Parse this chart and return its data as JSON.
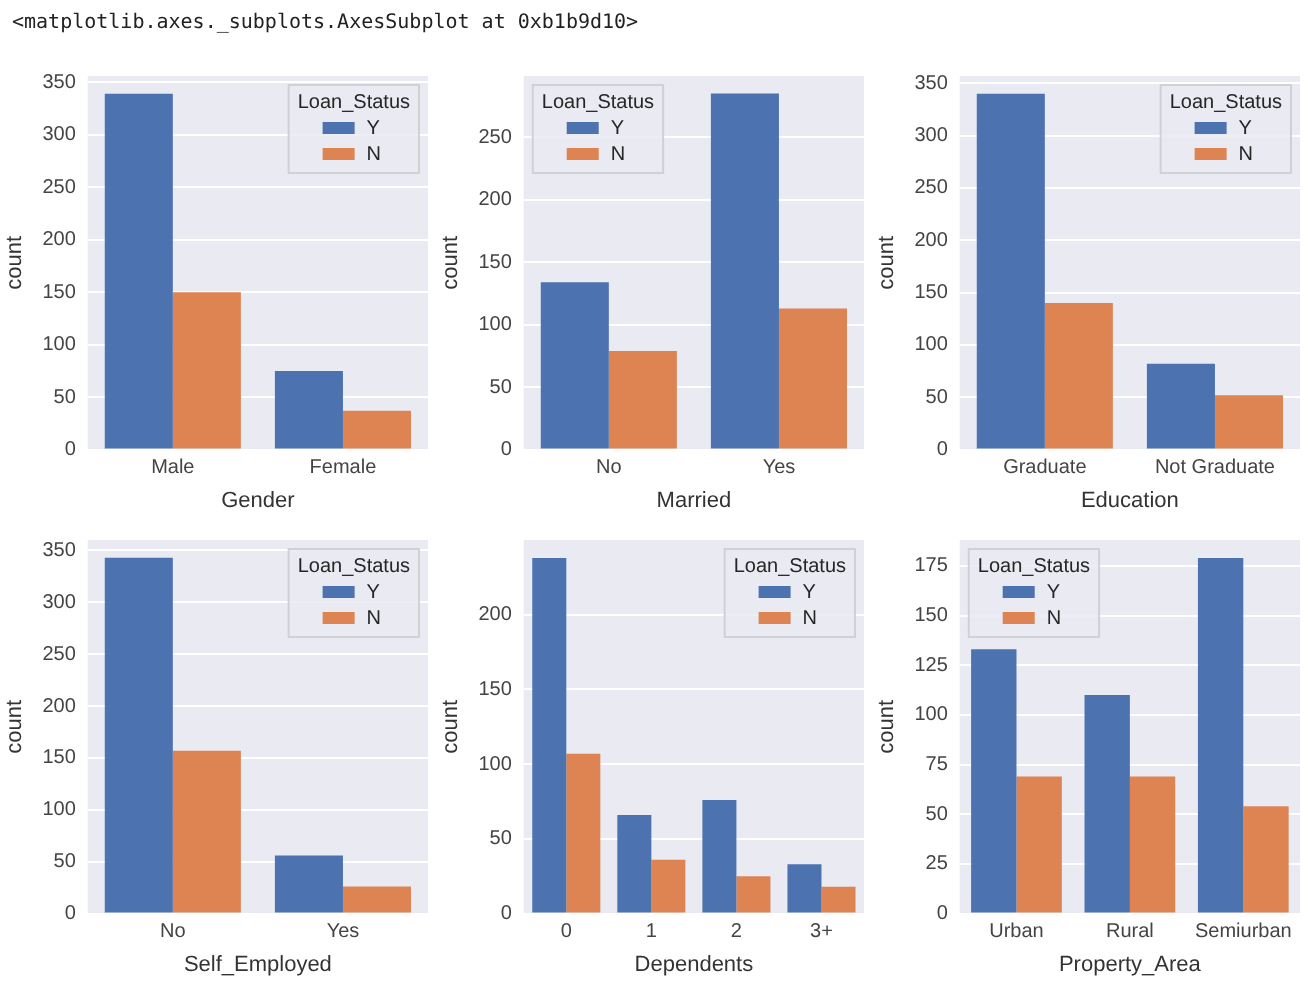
{
  "chart_data": [
    {
      "type": "bar",
      "annotations": [
        "<matplotlib.axes._subplots.AxesSubplot at 0xb1b9d10>"
      ],
      "xlabel": "Gender",
      "ylabel": "count",
      "categories": [
        "Male",
        "Female"
      ],
      "legend_title": "Loan_Status",
      "legend": "top right",
      "grid": "y",
      "ylim": [
        0,
        356
      ],
      "yticks": [
        0,
        50,
        100,
        150,
        200,
        250,
        300,
        350
      ],
      "series": [
        {
          "name": "Y",
          "color": "#4c72b0",
          "values": [
            339,
            75
          ]
        },
        {
          "name": "N",
          "color": "#dd8452",
          "values": [
            150,
            37
          ]
        }
      ]
    },
    {
      "type": "bar",
      "xlabel": "Married",
      "ylabel": "count",
      "categories": [
        "No",
        "Yes"
      ],
      "legend_title": "Loan_Status",
      "legend": "top left",
      "grid": "y",
      "ylim": [
        0,
        299
      ],
      "yticks": [
        0,
        50,
        100,
        150,
        200,
        250
      ],
      "series": [
        {
          "name": "Y",
          "color": "#4c72b0",
          "values": [
            134,
            285
          ]
        },
        {
          "name": "N",
          "color": "#dd8452",
          "values": [
            79,
            113
          ]
        }
      ]
    },
    {
      "type": "bar",
      "xlabel": "Education",
      "ylabel": "count",
      "categories": [
        "Graduate",
        "Not Graduate"
      ],
      "legend_title": "Loan_Status",
      "legend": "top right",
      "grid": "y",
      "ylim": [
        0,
        357
      ],
      "yticks": [
        0,
        50,
        100,
        150,
        200,
        250,
        300,
        350
      ],
      "series": [
        {
          "name": "Y",
          "color": "#4c72b0",
          "values": [
            340,
            82
          ]
        },
        {
          "name": "N",
          "color": "#dd8452",
          "values": [
            140,
            52
          ]
        }
      ]
    },
    {
      "type": "bar",
      "xlabel": "Self_Employed",
      "ylabel": "count",
      "categories": [
        "No",
        "Yes"
      ],
      "legend_title": "Loan_Status",
      "legend": "top right",
      "grid": "y",
      "ylim": [
        0,
        360
      ],
      "yticks": [
        0,
        50,
        100,
        150,
        200,
        250,
        300,
        350
      ],
      "series": [
        {
          "name": "Y",
          "color": "#4c72b0",
          "values": [
            343,
            56
          ]
        },
        {
          "name": "N",
          "color": "#dd8452",
          "values": [
            157,
            26
          ]
        }
      ]
    },
    {
      "type": "bar",
      "xlabel": "Dependents",
      "ylabel": "count",
      "categories": [
        "0",
        "1",
        "2",
        "3+"
      ],
      "legend_title": "Loan_Status",
      "legend": "top right",
      "grid": "y",
      "ylim": [
        0,
        250
      ],
      "yticks": [
        0,
        50,
        100,
        150,
        200
      ],
      "series": [
        {
          "name": "Y",
          "color": "#4c72b0",
          "values": [
            238,
            66,
            76,
            33
          ]
        },
        {
          "name": "N",
          "color": "#dd8452",
          "values": [
            107,
            36,
            25,
            18
          ]
        }
      ]
    },
    {
      "type": "bar",
      "xlabel": "Property_Area",
      "ylabel": "count",
      "categories": [
        "Urban",
        "Rural",
        "Semiurban"
      ],
      "legend_title": "Loan_Status",
      "legend": "top left",
      "grid": "y",
      "ylim": [
        0,
        188
      ],
      "yticks": [
        0,
        25,
        50,
        75,
        100,
        125,
        150,
        175
      ],
      "series": [
        {
          "name": "Y",
          "color": "#4c72b0",
          "values": [
            133,
            110,
            179
          ]
        },
        {
          "name": "N",
          "color": "#dd8452",
          "values": [
            69,
            69,
            54
          ]
        }
      ]
    }
  ]
}
